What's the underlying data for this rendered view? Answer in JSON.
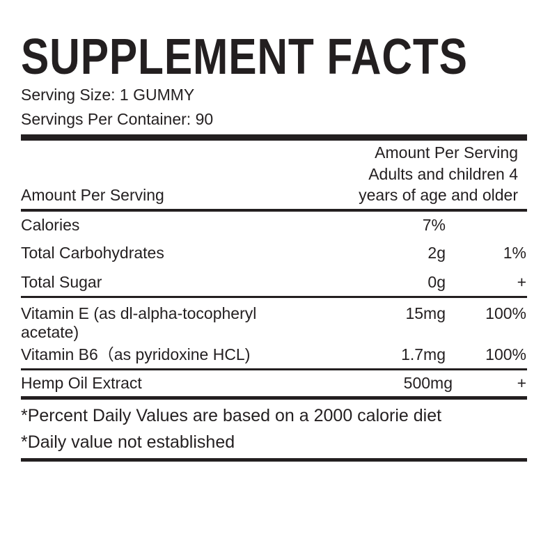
{
  "header": {
    "title": "SUPPLEMENT FACTS",
    "serving_size": "Serving Size: 1 GUMMY",
    "servings_per_container": "Servings Per Container: 90"
  },
  "table": {
    "column_header_left": "Amount Per Serving",
    "column_header_right": [
      "Amount Per Serving",
      "Adults and children 4",
      "years of age and older"
    ],
    "rows": [
      [
        "Calories",
        "7%"
      ],
      [
        "Total Carbohydrates",
        "2g",
        "1%"
      ],
      [
        "Total Sugar",
        "0g",
        "+"
      ],
      [
        "Vitamin E (as dl-alpha-tocopheryl",
        "acetate)",
        "15mg",
        "100%"
      ],
      [
        "Vitamin B6（as pyridoxine HCL)",
        "1.7mg",
        "100%"
      ],
      [
        "Hemp Oil Extract",
        "500mg",
        "+"
      ]
    ]
  },
  "footnotes": [
    "*Percent Daily Values are based on a 2000 calorie  diet",
    "*Daily value not established"
  ]
}
